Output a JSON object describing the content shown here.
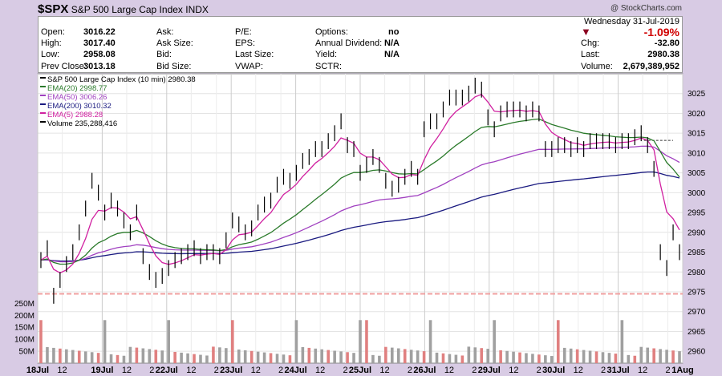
{
  "header": {
    "symbol": "$SPX",
    "name": "S&P 500 Large Cap Index",
    "exchange": "INDX",
    "copyright": "@ StockCharts.com"
  },
  "quote": {
    "open_label": "Open:",
    "open": "3016.22",
    "high_label": "High:",
    "high": "3017.40",
    "low_label": "Low:",
    "low": "2958.08",
    "prev_label": "Prev Close:",
    "prev": "3013.18",
    "ask_label": "Ask:",
    "ask": "",
    "asksize_label": "Ask Size:",
    "asksize": "",
    "bid_label": "Bid:",
    "bid": "",
    "bidsize_label": "Bid Size:",
    "bidsize": "",
    "pe_label": "P/E:",
    "pe": "",
    "eps_label": "EPS:",
    "eps": "",
    "lastsize_label": "Last Size:",
    "lastsize": "",
    "vwap_label": "VWAP:",
    "vwap": "",
    "options_label": "Options:",
    "options": "no",
    "div_label": "Annual Dividend:",
    "div": "N/A",
    "yield_label": "Yield:",
    "yield": "N/A",
    "sctr_label": "SCTR:",
    "sctr": "",
    "date": "Wednesday  31-Jul-2019",
    "pct": "-1.09%",
    "chg_label": "Chg:",
    "chg": "-32.80",
    "last_label": "Last:",
    "last": "2980.38",
    "volume_label": "Volume:",
    "volume": "2,679,389,952"
  },
  "legend": [
    {
      "text": "S&P 500 Large Cap Index (10 min) 2980.38",
      "color": "#000000"
    },
    {
      "text": "EMA(20) 2998.77",
      "color": "#2a7a2a"
    },
    {
      "text": "EMA(50) 3006.26",
      "color": "#a040c0"
    },
    {
      "text": "EMA(200) 3010.32",
      "color": "#1a1a80"
    },
    {
      "text": "EMA(5) 2988.28",
      "color": "#d020a0"
    },
    {
      "text": "Volume 235,288,416",
      "color": "#000000"
    }
  ],
  "colors": {
    "background": "#d8cbe4",
    "plot": "#ffffff",
    "price": "#000000",
    "ema20": "#2a7a2a",
    "ema50": "#a040c0",
    "ema200": "#1a1a80",
    "ema5": "#d020a0",
    "volume_up": "#a0a0a0",
    "volume_down": "#e08080"
  },
  "chart_data": {
    "type": "line",
    "title": "S&P 500 Large Cap Index (10 min) 2980.38",
    "x_ticks": [
      {
        "label": "18Jul",
        "bold": true,
        "day": 0,
        "frac": 0
      },
      {
        "label": "12",
        "bold": false,
        "day": 0,
        "frac": 0.38
      },
      {
        "label": "19Jul",
        "bold": true,
        "day": 1,
        "frac": 0
      },
      {
        "label": "12",
        "bold": false,
        "day": 1,
        "frac": 0.38
      },
      {
        "label": "2",
        "bold": false,
        "day": 1,
        "frac": 0.77
      },
      {
        "label": "22Jul",
        "bold": true,
        "day": 2,
        "frac": 0
      },
      {
        "label": "12",
        "bold": false,
        "day": 2,
        "frac": 0.38
      },
      {
        "label": "2",
        "bold": false,
        "day": 2,
        "frac": 0.77
      },
      {
        "label": "23Jul",
        "bold": true,
        "day": 3,
        "frac": 0
      },
      {
        "label": "12",
        "bold": false,
        "day": 3,
        "frac": 0.38
      },
      {
        "label": "2",
        "bold": false,
        "day": 3,
        "frac": 0.77
      },
      {
        "label": "24Jul",
        "bold": true,
        "day": 4,
        "frac": 0
      },
      {
        "label": "12",
        "bold": false,
        "day": 4,
        "frac": 0.38
      },
      {
        "label": "2",
        "bold": false,
        "day": 4,
        "frac": 0.77
      },
      {
        "label": "25Jul",
        "bold": true,
        "day": 5,
        "frac": 0
      },
      {
        "label": "12",
        "bold": false,
        "day": 5,
        "frac": 0.38
      },
      {
        "label": "2",
        "bold": false,
        "day": 5,
        "frac": 0.77
      },
      {
        "label": "26Jul",
        "bold": true,
        "day": 6,
        "frac": 0
      },
      {
        "label": "12",
        "bold": false,
        "day": 6,
        "frac": 0.38
      },
      {
        "label": "2",
        "bold": false,
        "day": 6,
        "frac": 0.77
      },
      {
        "label": "29Jul",
        "bold": true,
        "day": 7,
        "frac": 0
      },
      {
        "label": "12",
        "bold": false,
        "day": 7,
        "frac": 0.38
      },
      {
        "label": "2",
        "bold": false,
        "day": 7,
        "frac": 0.77
      },
      {
        "label": "30Jul",
        "bold": true,
        "day": 8,
        "frac": 0
      },
      {
        "label": "12",
        "bold": false,
        "day": 8,
        "frac": 0.38
      },
      {
        "label": "2",
        "bold": false,
        "day": 8,
        "frac": 0.77
      },
      {
        "label": "31Jul",
        "bold": true,
        "day": 9,
        "frac": 0
      },
      {
        "label": "12",
        "bold": false,
        "day": 9,
        "frac": 0.38
      },
      {
        "label": "2",
        "bold": false,
        "day": 9,
        "frac": 0.77
      },
      {
        "label": "1Aug",
        "bold": true,
        "day": 10,
        "frac": 0
      }
    ],
    "y_ticks": [
      2960,
      2965,
      2970,
      2975,
      2980,
      2985,
      2990,
      2995,
      3000,
      3005,
      3010,
      3015,
      3020,
      3025
    ],
    "ylim": [
      2957,
      3030
    ],
    "volume_ticks": [
      {
        "label": "50M",
        "v": 50
      },
      {
        "label": "100M",
        "v": 100
      },
      {
        "label": "150M",
        "v": 150
      },
      {
        "label": "200M",
        "v": 200
      },
      {
        "label": "250M",
        "v": 250
      }
    ],
    "volume_max": 290,
    "volume_divider": 2974.5,
    "ema_reference_level": 3013.18,
    "price_series": [
      2983,
      2986,
      2974,
      2978,
      2982,
      2985,
      2990,
      2996,
      3003,
      3000,
      2995,
      2998,
      2996,
      2993,
      2990,
      2995,
      2984,
      2980,
      2978,
      2979,
      2981,
      2983,
      2984,
      2985,
      2986,
      2984,
      2985,
      2985,
      2984,
      2988,
      2993,
      2992,
      2990,
      2991,
      2995,
      2997,
      2998,
      3002,
      3004,
      3003,
      3005,
      3008,
      3009,
      3011,
      3011,
      3013,
      3015,
      3018,
      3012,
      3011,
      3005,
      3007,
      3009,
      3007,
      3003,
      3001,
      3002,
      3004,
      3006,
      3004,
      3016,
      3018,
      3018,
      3021,
      3024,
      3024,
      3024,
      3025,
      3027,
      3026,
      3019,
      3016,
      3020,
      3021,
      3021,
      3021,
      3020,
      3021,
      3020,
      3011,
      3011,
      3012,
      3012,
      3011,
      3012,
      3011,
      3013,
      3013,
      3013,
      3013,
      3012,
      3013,
      3013,
      3014,
      3015,
      3012,
      3006,
      2985,
      2981,
      2990,
      2985
    ]
  }
}
